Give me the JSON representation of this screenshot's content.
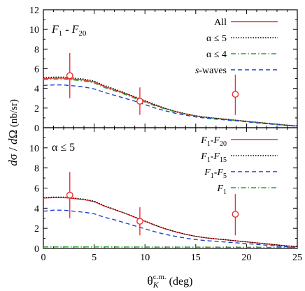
{
  "chart_data": [
    {
      "type": "line",
      "panel_label": "F",
      "panel_label_sub1": "1",
      "panel_label_mid": " - F",
      "panel_label_sub2": "20",
      "xlim": [
        0,
        25
      ],
      "ylim": [
        0,
        12
      ],
      "xticks": [
        "0",
        "5",
        "10",
        "15",
        "20",
        "25"
      ],
      "yticks": [
        "0",
        "2",
        "4",
        "6",
        "8",
        "10",
        "12"
      ],
      "legend_position": "top-right",
      "series": [
        {
          "name": "All",
          "color": "#e8312f",
          "dash": "solid",
          "x": [
            0,
            1,
            2,
            3,
            4,
            5,
            6,
            7,
            8,
            9,
            10,
            11,
            12,
            13,
            14,
            15,
            16,
            17,
            18,
            19,
            20,
            21,
            22,
            23,
            24,
            25
          ],
          "y": [
            5.0,
            5.05,
            5.05,
            4.95,
            4.85,
            4.65,
            4.2,
            3.85,
            3.5,
            3.1,
            2.7,
            2.3,
            1.95,
            1.65,
            1.4,
            1.2,
            1.05,
            0.95,
            0.85,
            0.75,
            0.65,
            0.55,
            0.45,
            0.35,
            0.25,
            0.18
          ]
        },
        {
          "name": "α ≤ 5",
          "color": "#000000",
          "dash": "dotted",
          "x": [
            0,
            1,
            2,
            3,
            4,
            5,
            6,
            7,
            8,
            9,
            10,
            11,
            12,
            13,
            14,
            15,
            16,
            17,
            18,
            19,
            20,
            21,
            22,
            23,
            24,
            25
          ],
          "y": [
            5.1,
            5.15,
            5.15,
            5.05,
            4.95,
            4.75,
            4.3,
            3.95,
            3.55,
            3.15,
            2.75,
            2.35,
            1.97,
            1.67,
            1.42,
            1.22,
            1.07,
            0.96,
            0.86,
            0.76,
            0.66,
            0.56,
            0.46,
            0.36,
            0.26,
            0.18
          ]
        },
        {
          "name": "α ≤ 4",
          "color": "#2ca02c",
          "dash": "dashdot",
          "x": [
            0,
            1,
            2,
            3,
            4,
            5,
            6,
            7,
            8,
            9,
            10,
            11,
            12,
            13,
            14,
            15,
            16,
            17,
            18,
            19,
            20,
            21,
            22,
            23,
            24,
            25
          ],
          "y": [
            4.9,
            4.95,
            4.95,
            4.85,
            4.75,
            4.55,
            4.1,
            3.75,
            3.4,
            3.0,
            2.6,
            2.22,
            1.9,
            1.6,
            1.37,
            1.18,
            1.03,
            0.93,
            0.83,
            0.73,
            0.63,
            0.53,
            0.43,
            0.33,
            0.24,
            0.17
          ]
        },
        {
          "name": "s-waves",
          "name_italic": "s",
          "name_rest": "-waves",
          "color": "#1f3fd6",
          "dash": "dashed",
          "x": [
            0,
            1,
            2,
            3,
            4,
            5,
            6,
            7,
            8,
            9,
            10,
            11,
            12,
            13,
            14,
            15,
            16,
            17,
            18,
            19,
            20,
            21,
            22,
            23,
            24,
            25
          ],
          "y": [
            4.3,
            4.35,
            4.35,
            4.25,
            4.15,
            3.95,
            3.6,
            3.3,
            3.0,
            2.7,
            2.35,
            2.0,
            1.72,
            1.47,
            1.27,
            1.1,
            0.97,
            0.87,
            0.78,
            0.7,
            0.6,
            0.5,
            0.4,
            0.32,
            0.22,
            0.15
          ]
        }
      ],
      "data_points": [
        {
          "x": 2.6,
          "y": 5.3,
          "yerr_low": 3.0,
          "yerr_high": 7.6
        },
        {
          "x": 9.5,
          "y": 2.7,
          "yerr_low": 1.3,
          "yerr_high": 4.1
        },
        {
          "x": 18.9,
          "y": 3.4,
          "yerr_low": 1.3,
          "yerr_high": 5.4
        }
      ]
    },
    {
      "type": "line",
      "panel_label": "α ≤ 5",
      "xlim": [
        0,
        25
      ],
      "ylim": [
        0,
        12
      ],
      "xticks": [
        "0",
        "5",
        "10",
        "15",
        "20",
        "25"
      ],
      "yticks": [
        "0",
        "2",
        "4",
        "6",
        "8",
        "10"
      ],
      "xlabel_main": "θ",
      "xlabel_sub": "K",
      "xlabel_sup": "c.m.",
      "xlabel_unit": " (deg)",
      "legend_position": "top-right",
      "series": [
        {
          "name": "F1-F20",
          "lbl_a": "F",
          "lbl_a_sub": "1",
          "lbl_mid": "-F",
          "lbl_b_sub": "20",
          "color": "#e8312f",
          "dash": "solid",
          "x": [
            0,
            1,
            2,
            3,
            4,
            5,
            6,
            7,
            8,
            9,
            10,
            11,
            12,
            13,
            14,
            15,
            16,
            17,
            18,
            19,
            20,
            21,
            22,
            23,
            24,
            25
          ],
          "y": [
            5.0,
            5.05,
            5.05,
            4.95,
            4.85,
            4.65,
            4.2,
            3.85,
            3.5,
            3.1,
            2.7,
            2.3,
            1.95,
            1.65,
            1.4,
            1.2,
            1.05,
            0.95,
            0.85,
            0.75,
            0.65,
            0.55,
            0.45,
            0.35,
            0.25,
            0.18
          ]
        },
        {
          "name": "F1-F15",
          "lbl_a": "F",
          "lbl_a_sub": "1",
          "lbl_mid": "-F",
          "lbl_b_sub": "15",
          "color": "#000000",
          "dash": "dotted",
          "x": [
            0,
            1,
            2,
            3,
            4,
            5,
            6,
            7,
            8,
            9,
            10,
            11,
            12,
            13,
            14,
            15,
            16,
            17,
            18,
            19,
            20,
            21,
            22,
            23,
            24,
            25
          ],
          "y": [
            5.05,
            5.1,
            5.1,
            5.0,
            4.9,
            4.7,
            4.25,
            3.9,
            3.52,
            3.12,
            2.72,
            2.32,
            1.96,
            1.66,
            1.41,
            1.21,
            1.06,
            0.95,
            0.85,
            0.75,
            0.65,
            0.55,
            0.45,
            0.35,
            0.25,
            0.18
          ]
        },
        {
          "name": "F1-F5",
          "lbl_a": "F",
          "lbl_a_sub": "1",
          "lbl_mid": "-F",
          "lbl_b_sub": "5",
          "color": "#1f3fd6",
          "dash": "dashed",
          "x": [
            0,
            1,
            2,
            3,
            4,
            5,
            6,
            7,
            8,
            9,
            10,
            11,
            12,
            13,
            14,
            15,
            16,
            17,
            18,
            19,
            20,
            21,
            22,
            23,
            24,
            25
          ],
          "y": [
            3.7,
            3.8,
            3.8,
            3.7,
            3.6,
            3.45,
            3.1,
            2.85,
            2.55,
            2.25,
            1.95,
            1.65,
            1.4,
            1.2,
            1.02,
            0.88,
            0.78,
            0.7,
            0.63,
            0.56,
            0.48,
            0.4,
            0.32,
            0.24,
            0.16,
            0.1
          ]
        },
        {
          "name": "F1",
          "lbl_a": "F",
          "lbl_a_sub": "1",
          "lbl_mid": "",
          "lbl_b_sub": "",
          "color": "#2ca02c",
          "dash": "dashdot",
          "x": [
            0,
            5,
            10,
            15,
            20,
            25
          ],
          "y": [
            0.15,
            0.15,
            0.14,
            0.13,
            0.12,
            0.1
          ]
        }
      ],
      "data_points": [
        {
          "x": 2.6,
          "y": 5.3,
          "yerr_low": 3.0,
          "yerr_high": 7.6
        },
        {
          "x": 9.5,
          "y": 2.7,
          "yerr_low": 1.3,
          "yerr_high": 4.1
        },
        {
          "x": 18.9,
          "y": 3.4,
          "yerr_low": 1.3,
          "yerr_high": 5.4
        }
      ]
    }
  ],
  "shared_ylabel_d1": "d",
  "shared_ylabel_sigma": "σ",
  "shared_ylabel_slash": " / ",
  "shared_ylabel_d2": "d",
  "shared_ylabel_omega": "Ω",
  "shared_ylabel_unit": "  (nb/sr)"
}
